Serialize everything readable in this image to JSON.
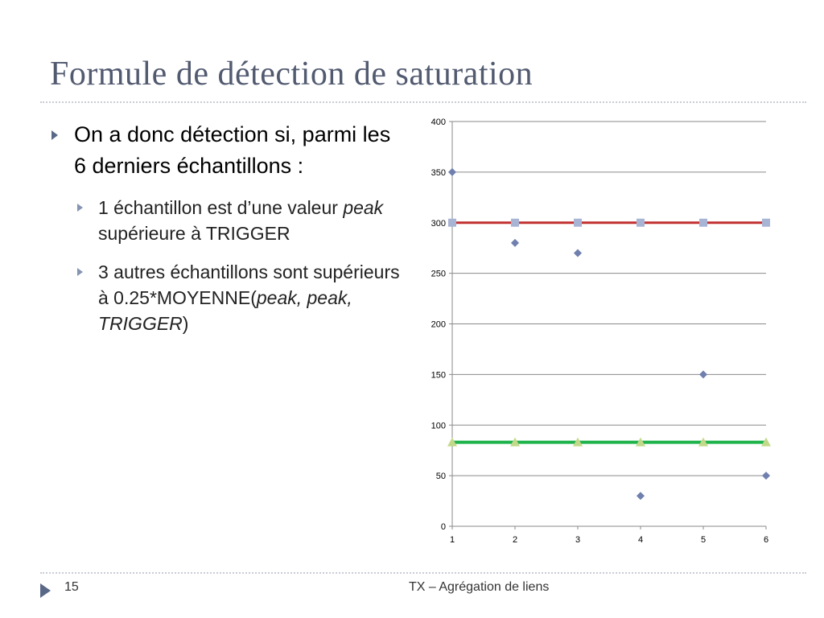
{
  "slide": {
    "title": "Formule de détection de saturation",
    "bullet_main": "On a donc détection si, parmi les 6 derniers échantillons :",
    "sub_bullet_1": {
      "before": "1 échantillon est d’une valeur ",
      "italic": "peak",
      "after": " supérieure à TRIGGER"
    },
    "sub_bullet_2": {
      "before": "3 autres échantillons sont supérieurs à 0.25*MOYENNE(",
      "italic": "peak, peak, TRIGGER",
      "after": ")"
    }
  },
  "footer": {
    "page_number": "15",
    "text": "TX – Agrégation de liens"
  },
  "chart_data": {
    "type": "scatter",
    "x": [
      1,
      2,
      3,
      4,
      5,
      6
    ],
    "xlabel": "",
    "ylabel": "",
    "xlim": [
      1,
      6
    ],
    "ylim": [
      0,
      400
    ],
    "y_ticks": [
      0,
      50,
      100,
      150,
      200,
      250,
      300,
      350,
      400
    ],
    "x_ticks": [
      1,
      2,
      3,
      4,
      5,
      6
    ],
    "grid": "horizontal",
    "legend": "none",
    "series": [
      {
        "values": [
          350,
          280,
          270,
          30,
          150,
          50
        ],
        "marker": "diamond",
        "color": "#6f7fae"
      },
      {
        "values": [
          300,
          300,
          300,
          300,
          300,
          300
        ],
        "marker": "square",
        "color": "#a8b4d4",
        "line_color": "#c0302f"
      },
      {
        "values": [
          83,
          83,
          83,
          83,
          83,
          83
        ],
        "marker": "triangle",
        "color": "#c3d98a",
        "line_color": "#1db34a"
      }
    ]
  }
}
